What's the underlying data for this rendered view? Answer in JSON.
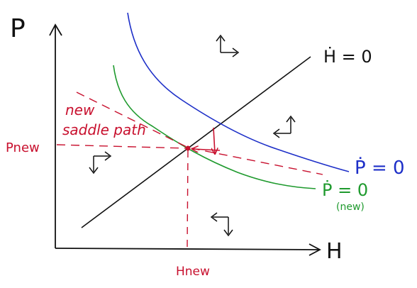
{
  "labels": {
    "y_axis": "P",
    "x_axis": "H",
    "h_dot_eq": "Ḣ = 0",
    "p_dot_eq": "Ṗ = 0",
    "p_dot_new_eq": "Ṗ = 0",
    "p_dot_new_tag": "(new)",
    "saddle_line1": "new",
    "saddle_line2": "saddle path",
    "p_new": "Pnew",
    "h_new": "Hnew"
  },
  "colors": {
    "axes": "#111111",
    "h_dot_line": "#111111",
    "p_dot_old": "#1d2fc8",
    "p_dot_new": "#1f9a2e",
    "annotation": "#c8102e"
  },
  "phase_arrows": [
    {
      "region": "top",
      "directions": [
        "up",
        "right"
      ]
    },
    {
      "region": "right",
      "directions": [
        "up",
        "left"
      ]
    },
    {
      "region": "left",
      "directions": [
        "down",
        "right"
      ]
    },
    {
      "region": "bottom",
      "directions": [
        "down",
        "left"
      ]
    }
  ]
}
